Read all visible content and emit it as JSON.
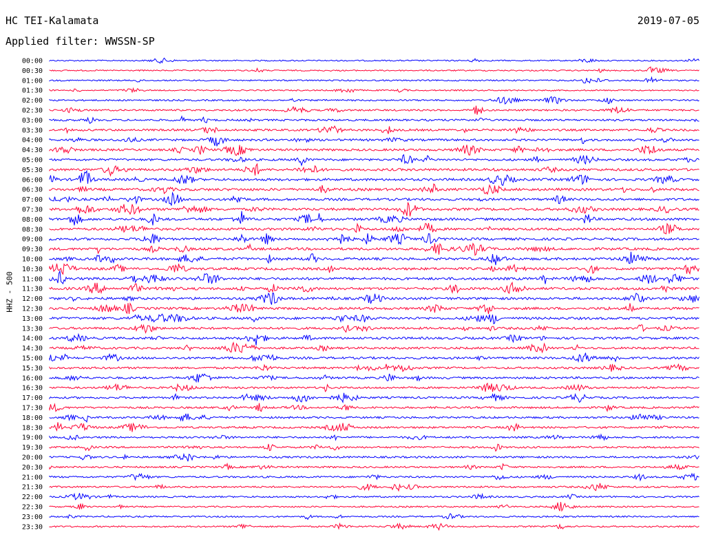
{
  "header": {
    "station": "HC TEI-Kalamata",
    "date": "2019-07-05",
    "filter": "Applied filter: WWSSN-SP"
  },
  "colors": {
    "even_trace": "#0000ff",
    "odd_trace": "#ff0033"
  },
  "chart_data": {
    "type": "line",
    "title": "HC TEI-Kalamata",
    "subtitle": "Applied filter: WWSSN-SP",
    "ylabel": "HHZ - 500",
    "xlabel": "",
    "grid": false,
    "legend": "none",
    "categories": [
      "00:00",
      "00:30",
      "01:00",
      "01:30",
      "02:00",
      "02:30",
      "03:00",
      "03:30",
      "04:00",
      "04:30",
      "05:00",
      "05:30",
      "06:00",
      "06:30",
      "07:00",
      "07:30",
      "08:00",
      "08:30",
      "09:00",
      "09:30",
      "10:00",
      "10:30",
      "11:00",
      "11:30",
      "12:00",
      "12:30",
      "13:00",
      "13:30",
      "14:00",
      "14:30",
      "15:00",
      "15:30",
      "16:00",
      "16:30",
      "17:00",
      "17:30",
      "18:00",
      "18:30",
      "19:00",
      "19:30",
      "20:00",
      "20:30",
      "21:00",
      "21:30",
      "22:00",
      "22:30",
      "23:00",
      "23:30"
    ],
    "amplitude": [
      0.2,
      0.2,
      0.25,
      0.2,
      0.35,
      0.4,
      0.5,
      0.55,
      0.6,
      0.6,
      0.6,
      0.7,
      0.7,
      0.75,
      0.7,
      0.75,
      0.75,
      0.7,
      0.7,
      0.75,
      0.75,
      0.75,
      0.75,
      0.75,
      0.7,
      0.7,
      0.7,
      0.65,
      0.65,
      0.6,
      0.6,
      0.55,
      0.55,
      0.5,
      0.5,
      0.5,
      0.5,
      0.5,
      0.45,
      0.45,
      0.45,
      0.4,
      0.4,
      0.4,
      0.35,
      0.3,
      0.3,
      0.3
    ]
  }
}
